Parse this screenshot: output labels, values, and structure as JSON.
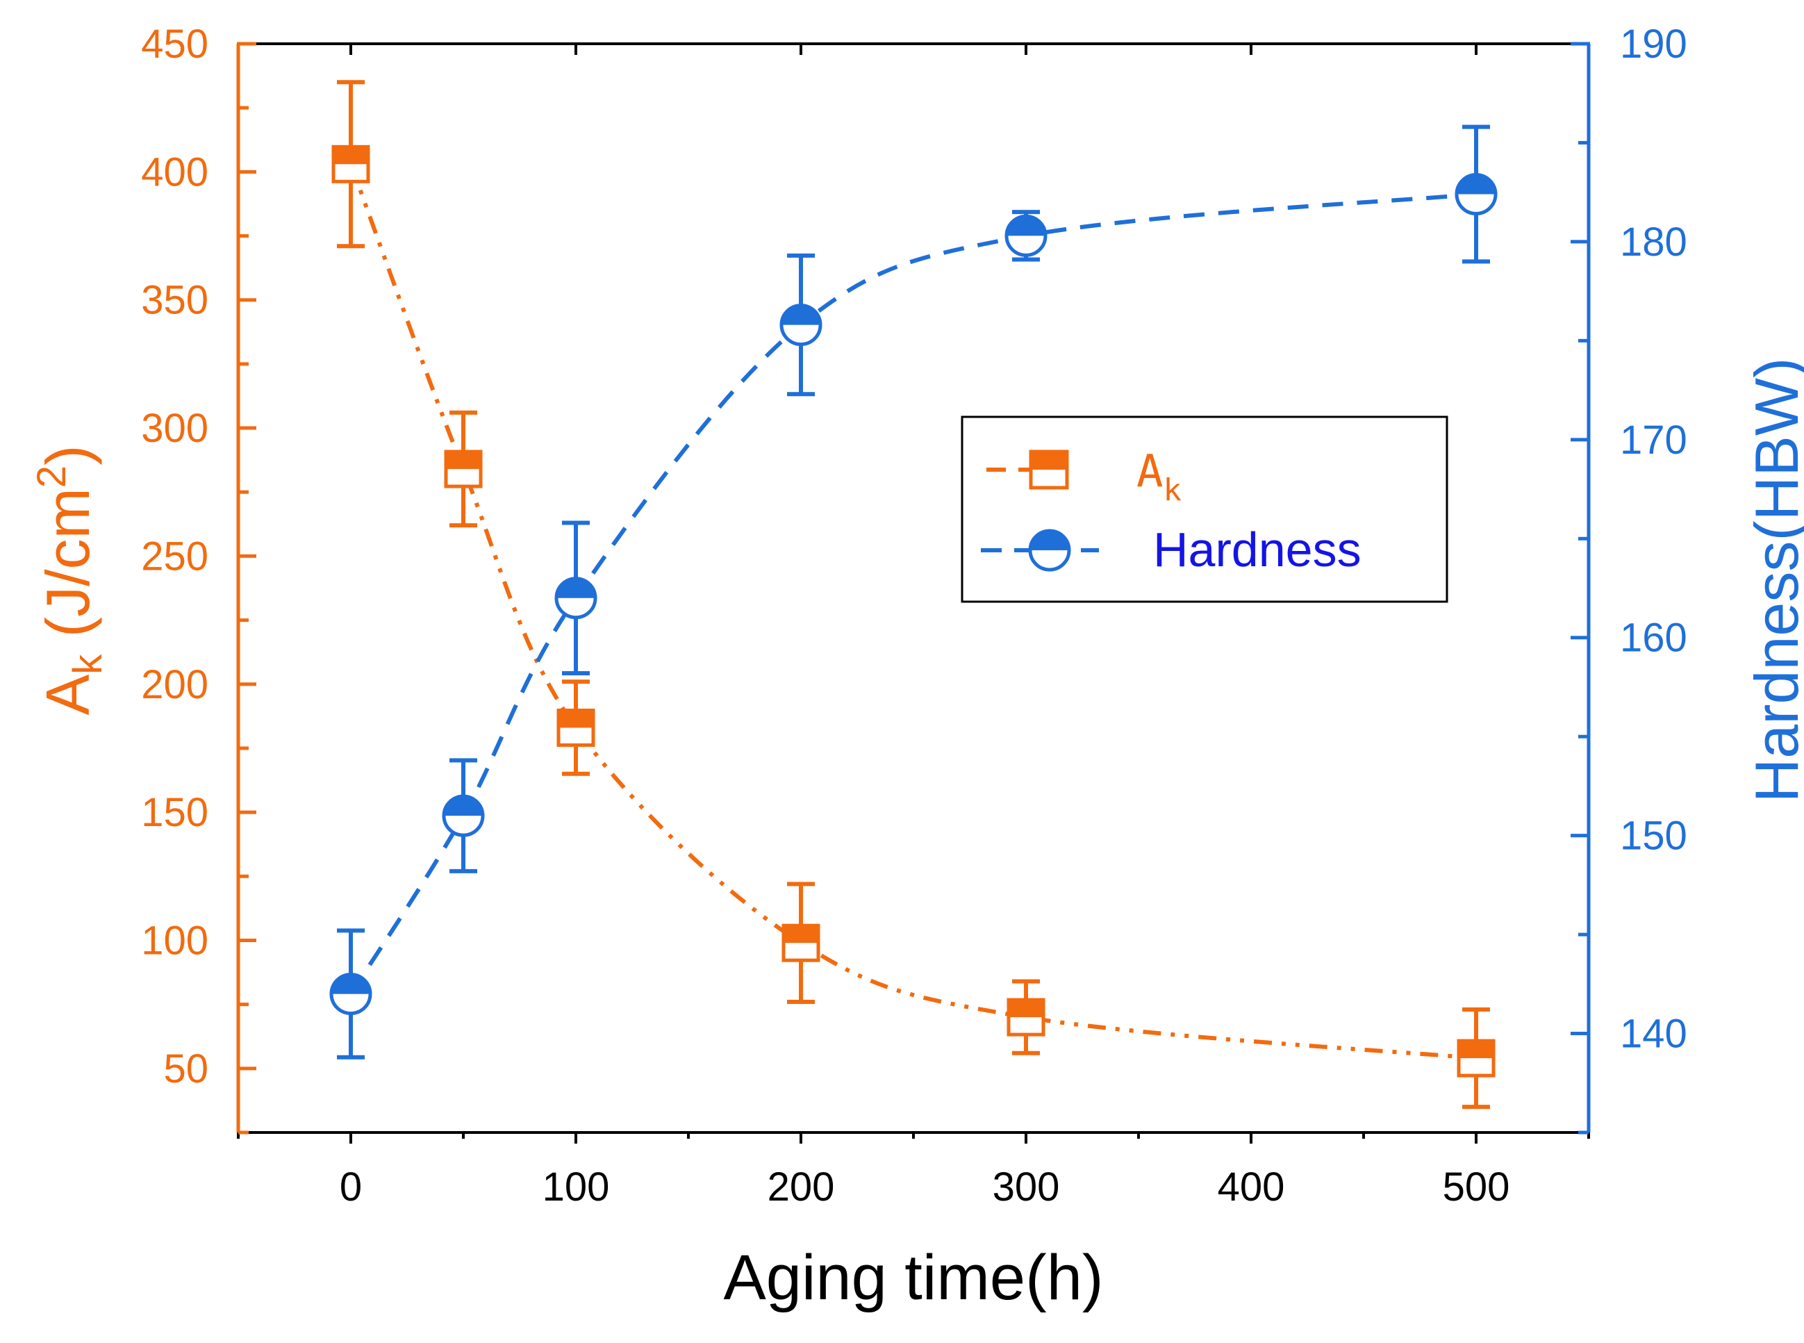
{
  "chart_data": {
    "type": "line",
    "title": "",
    "xlabel": "Aging time(h)",
    "ylabel_left": {
      "base": "A",
      "sub": "k",
      "unit_prefix": "(J/cm",
      "unit_sup": "2",
      "unit_suffix": ")"
    },
    "ylabel_right": "Hardness(HBW)",
    "xlim": [
      -50,
      550
    ],
    "ylim_left": [
      25,
      450
    ],
    "ylim_right": [
      135,
      190
    ],
    "x_ticks": [
      0,
      100,
      200,
      300,
      400,
      500
    ],
    "x_tick_labels": [
      "0",
      "100",
      "200",
      "300",
      "400",
      "500"
    ],
    "y_left_ticks": [
      50,
      100,
      150,
      200,
      250,
      300,
      350,
      400,
      450
    ],
    "y_left_tick_labels": [
      "50",
      "100",
      "150",
      "200",
      "250",
      "300",
      "350",
      "400",
      "450"
    ],
    "y_right_ticks": [
      140,
      150,
      160,
      170,
      180,
      190
    ],
    "y_right_tick_labels": [
      "140",
      "150",
      "160",
      "170",
      "180",
      "190"
    ],
    "series": [
      {
        "name": "Ak",
        "legend_base": "A",
        "legend_sub": "k",
        "axis": "left",
        "marker": "half-filled-square",
        "line_style": "dash-dot-dot",
        "color": "#F26B0F",
        "x": [
          0,
          50,
          100,
          200,
          300,
          500
        ],
        "y": [
          403,
          284,
          183,
          99,
          70,
          54
        ],
        "err": [
          32,
          22,
          18,
          23,
          14,
          19
        ]
      },
      {
        "name": "Hardness",
        "axis": "right",
        "marker": "half-filled-circle",
        "line_style": "dash",
        "color": "#1F6FD9",
        "x": [
          0,
          50,
          100,
          200,
          300,
          500
        ],
        "y": [
          142,
          151,
          162,
          175.8,
          180.3,
          182.4
        ],
        "err": [
          3.2,
          2.8,
          3.8,
          3.5,
          1.2,
          3.4
        ]
      }
    ],
    "legend_placement": "center-right",
    "grid": false
  },
  "colors": {
    "orange": "#F26B0F",
    "blue": "#1F6FD9",
    "legend_hardness_text": "#1414E6",
    "frame": "#000000"
  }
}
